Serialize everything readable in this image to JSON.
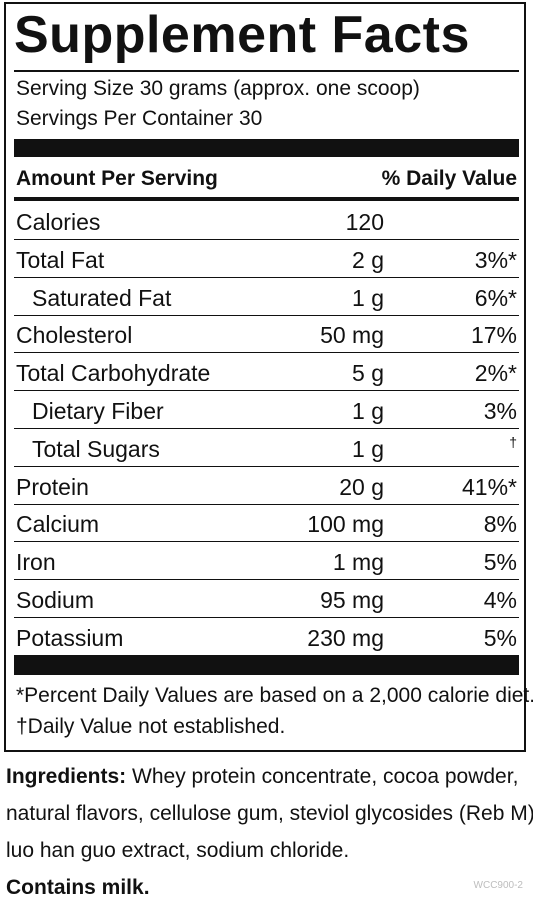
{
  "label": {
    "title": "Supplement Facts",
    "serving_size": "Serving Size 30 grams (approx. one scoop)",
    "servings_per_container": "Servings Per Container 30",
    "header_left": "Amount Per Serving",
    "header_right": "% Daily Value",
    "rows": [
      {
        "nutrient": "Calories",
        "amount": "120",
        "dv": ""
      },
      {
        "nutrient": "Total Fat",
        "amount": "2 g",
        "dv": "3%*"
      },
      {
        "nutrient": "Saturated Fat",
        "amount": "1 g",
        "dv": "6%*"
      },
      {
        "nutrient": "Cholesterol",
        "amount": "50 mg",
        "dv": "17%"
      },
      {
        "nutrient": "Total Carbohydrate",
        "amount": "5 g",
        "dv": "2%*"
      },
      {
        "nutrient": "Dietary Fiber",
        "amount": "1 g",
        "dv": "3%"
      },
      {
        "nutrient": "Total Sugars",
        "amount": "1 g",
        "dv": "†"
      },
      {
        "nutrient": "Protein",
        "amount": "20 g",
        "dv": "41%*"
      },
      {
        "nutrient": "Calcium",
        "amount": "100 mg",
        "dv": "8%"
      },
      {
        "nutrient": "Iron",
        "amount": "1 mg",
        "dv": "5%"
      },
      {
        "nutrient": "Sodium",
        "amount": "95 mg",
        "dv": "4%"
      },
      {
        "nutrient": "Potassium",
        "amount": "230 mg",
        "dv": "5%"
      }
    ],
    "footnote_percent": "*Percent Daily Values are based on a 2,000 calorie diet.",
    "footnote_dagger": "†Daily Value not established."
  },
  "ingredients": {
    "heading": "Ingredients:",
    "line1": " Whey protein concentrate, cocoa powder,",
    "line2": "natural flavors, cellulose gum, steviol glycosides (Reb M),",
    "line3": "luo han guo extract, sodium chloride.",
    "allergen": "Contains milk."
  },
  "product_code": "WCC900-2"
}
